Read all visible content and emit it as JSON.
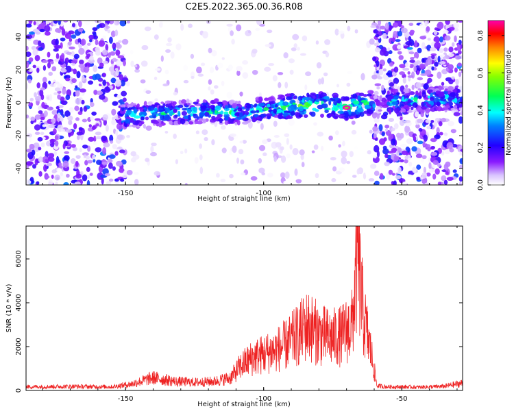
{
  "figure_title": "C2E5.2022.365.00.36.R08",
  "chart_data": [
    {
      "type": "heatmap",
      "xlabel": "Height of straight line (km)",
      "ylabel": "Frequency (Hz)",
      "xlim": [
        -186,
        -28
      ],
      "ylim": [
        -50,
        50
      ],
      "x_ticks": [
        -150,
        -100,
        -50
      ],
      "y_ticks": [
        -40,
        -20,
        0,
        20,
        40
      ],
      "colorbar": {
        "label": "Normalized spectral amplitude",
        "range": [
          0,
          0.88
        ],
        "ticks": [
          0.0,
          0.2,
          0.4,
          0.6,
          0.8
        ],
        "colors": [
          "#ffffff",
          "#c9a6ff",
          "#7a00ff",
          "#0000ff",
          "#00ffff",
          "#00ff66",
          "#ffff00",
          "#ff8000",
          "#ff0000",
          "#ff00aa"
        ]
      },
      "signal_trace": {
        "x": [
          -150,
          -140,
          -130,
          -120,
          -110,
          -100,
          -90,
          -80,
          -70,
          -60,
          -50,
          -40,
          -30
        ],
        "frequency_hz": [
          -8,
          -7,
          -6,
          -5,
          -6,
          -4,
          -2,
          -1,
          -3,
          0,
          1,
          2,
          3
        ]
      },
      "peak": {
        "x": -70,
        "frequency_hz": -3,
        "amplitude": 0.88
      }
    },
    {
      "type": "line",
      "xlabel": "Height of straight line (km)",
      "ylabel": "SNR (10 * v/v)",
      "xlim": [
        -186,
        -28
      ],
      "ylim": [
        0,
        7500
      ],
      "x_ticks": [
        -150,
        -100,
        -50
      ],
      "y_ticks": [
        0,
        2000,
        4000,
        6000
      ],
      "line_color": "#ee2222",
      "series": [
        {
          "x": [
            -186,
            -170,
            -155,
            -148,
            -140,
            -132,
            -125,
            -118,
            -112,
            -108,
            -104,
            -100,
            -96,
            -92,
            -88,
            -84,
            -80,
            -76,
            -72,
            -68,
            -66,
            -64,
            -61,
            -59,
            -55,
            -50,
            -45,
            -40,
            -35,
            -30,
            -28
          ],
          "values": [
            200,
            220,
            200,
            350,
            700,
            500,
            450,
            500,
            700,
            1400,
            1800,
            2000,
            2200,
            2500,
            3000,
            3600,
            3100,
            2900,
            3000,
            3600,
            7400,
            4200,
            2000,
            250,
            200,
            200,
            180,
            200,
            220,
            350,
            400
          ]
        }
      ]
    }
  ]
}
